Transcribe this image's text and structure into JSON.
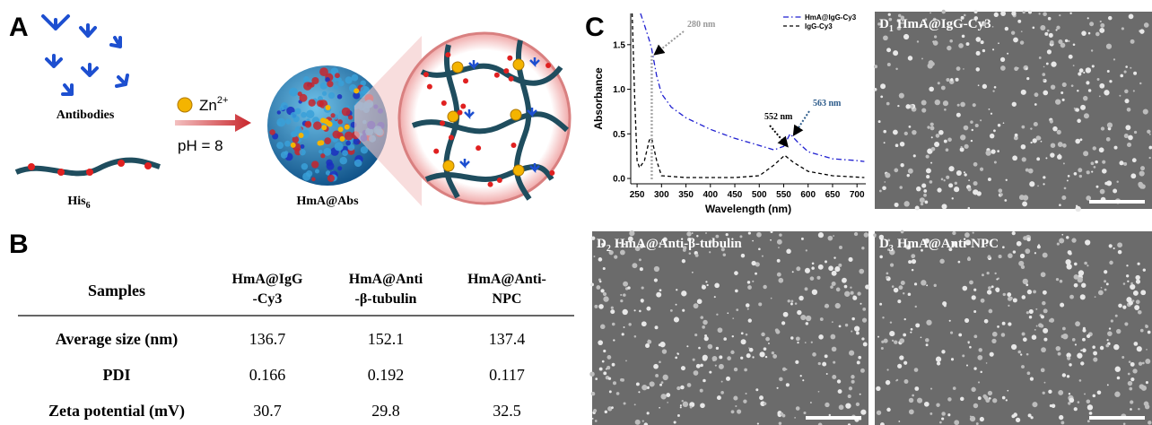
{
  "schematic": {
    "label": "A",
    "antibodies": "Antibodies",
    "his_label": "His",
    "his_subscript": "6",
    "zn_label": "Zn",
    "zn_superscript": "2+",
    "ph_label": "pH = 8",
    "particle_label": "HmA@Abs"
  },
  "table_panel": {
    "label": "B",
    "header": [
      [
        "Samples"
      ],
      [
        "HmA@IgG",
        "-Cy3"
      ],
      [
        "HmA@Anti",
        "-β-tubulin"
      ],
      [
        "HmA@Anti-",
        "NPC"
      ]
    ],
    "rows": [
      [
        "Average size (nm)",
        136.7,
        152.1,
        137.4
      ],
      [
        "PDI",
        0.166,
        0.192,
        0.117
      ],
      [
        "Zeta potential (mV)",
        30.7,
        29.8,
        32.5
      ]
    ]
  },
  "chart_data": {
    "type": "line",
    "panel_label": "C",
    "x_label": "Wavelength (nm)",
    "y_label": "Absorbance",
    "xlim": [
      237,
      718
    ],
    "ylim": [
      -0.06,
      1.85
    ],
    "xticks": [
      250,
      300,
      350,
      400,
      450,
      500,
      550,
      600,
      650,
      700
    ],
    "yticks": [
      {
        "value": 0,
        "label": "0.0"
      },
      0.5,
      {
        "value": 1,
        "label": "1.0"
      },
      1.5
    ],
    "legend": "top-right",
    "annotations": [
      "280 nm",
      "552 nm",
      "563 nm"
    ],
    "series": [
      {
        "name": "HmA@IgG-Cy3",
        "color": "#1f1fd0",
        "dash": "dashdot",
        "x": [
          257,
          265,
          275,
          280,
          290,
          300,
          320,
          350,
          400,
          450,
          500,
          530,
          550,
          563,
          580,
          600,
          650,
          700,
          715
        ],
        "values": [
          1.85,
          1.72,
          1.55,
          1.45,
          1.15,
          0.95,
          0.8,
          0.68,
          0.55,
          0.45,
          0.37,
          0.32,
          0.36,
          0.5,
          0.4,
          0.3,
          0.22,
          0.2,
          0.19
        ]
      },
      {
        "name": "IgG-Cy3",
        "color": "#000000",
        "dash": "dash",
        "x": [
          240,
          245,
          250,
          255,
          265,
          275,
          280,
          290,
          300,
          350,
          450,
          500,
          530,
          552,
          570,
          600,
          650,
          715
        ],
        "values": [
          1.85,
          0.9,
          0.2,
          0.12,
          0.2,
          0.43,
          0.45,
          0.2,
          0.03,
          0.01,
          0.01,
          0.03,
          0.15,
          0.26,
          0.18,
          0.08,
          0.03,
          0.01
        ]
      }
    ]
  },
  "sem_panels": [
    {
      "label": "D",
      "subscript": "1",
      "title": "HmA@IgG-Cy3"
    },
    {
      "label": "D",
      "subscript": "2",
      "title": "HmA@Anti-β-tubulin"
    },
    {
      "label": "D",
      "subscript": "3",
      "title": "HmA@Anti-NPC"
    }
  ]
}
